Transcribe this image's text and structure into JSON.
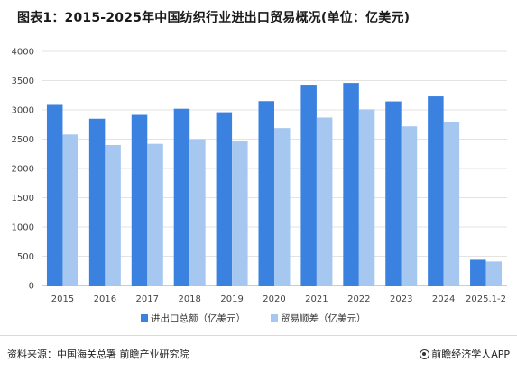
{
  "header": {
    "title": "图表1：2015-2025年中国纺织行业进出口贸易概况(单位：亿美元)"
  },
  "footer": {
    "source": "资料来源：中国海关总署 前瞻产业研究院",
    "brand": "前瞻经济学人APP",
    "brand_icon": "brand-logo-icon"
  },
  "colors": {
    "series1": "#3b82e0",
    "series2": "#a6c8f0",
    "grid": "#e3e3e3",
    "axis": "#999999"
  },
  "chart_data": {
    "type": "bar",
    "title": "图表1：2015-2025年中国纺织行业进出口贸易概况(单位：亿美元)",
    "categories": [
      "2015",
      "2016",
      "2017",
      "2018",
      "2019",
      "2020",
      "2021",
      "2022",
      "2023",
      "2024",
      "2025.1-2"
    ],
    "series": [
      {
        "name": "进出口总额（亿美元）",
        "values": [
          3085,
          2850,
          2915,
          3020,
          2960,
          3150,
          3430,
          3460,
          3145,
          3230,
          440
        ]
      },
      {
        "name": "贸易顺差（亿美元）",
        "values": [
          2580,
          2400,
          2420,
          2500,
          2470,
          2690,
          2870,
          3010,
          2720,
          2800,
          410
        ]
      }
    ],
    "yticks": [
      "0",
      "500",
      "1000",
      "1500",
      "2000",
      "2500",
      "3000",
      "3500",
      "4000"
    ],
    "ylim": [
      0,
      4000
    ],
    "grid": true,
    "legend_position": "bottom"
  }
}
